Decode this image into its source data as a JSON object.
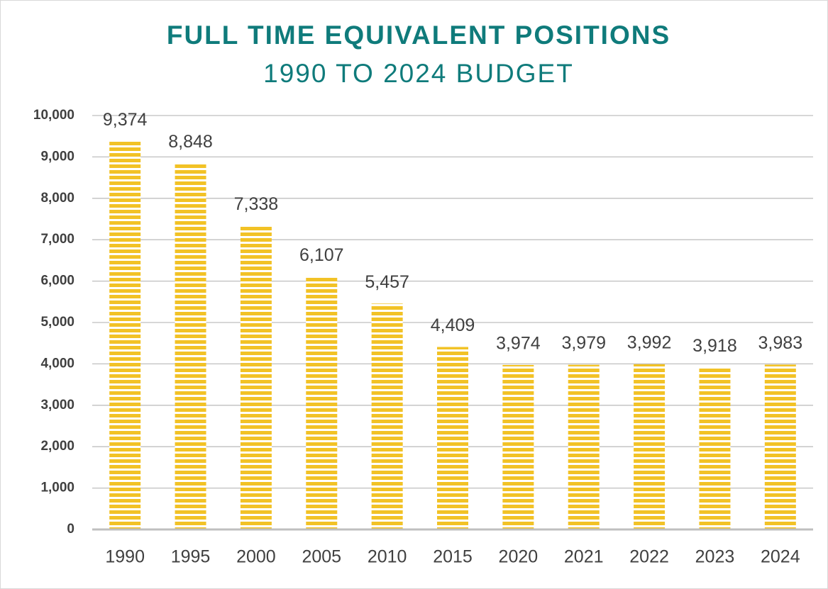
{
  "chart_data": {
    "type": "bar",
    "title": "FULL TIME EQUIVALENT POSITIONS",
    "subtitle": "1990 TO 2024 BUDGET",
    "categories": [
      "1990",
      "1995",
      "2000",
      "2005",
      "2010",
      "2015",
      "2020",
      "2021",
      "2022",
      "2023",
      "2024"
    ],
    "values": [
      9374,
      8848,
      7338,
      6107,
      5457,
      4409,
      3974,
      3979,
      3992,
      3918,
      3983
    ],
    "value_labels": [
      "9,374",
      "8,848",
      "7,338",
      "6,107",
      "5,457",
      "4,409",
      "3,974",
      "3,979",
      "3,992",
      "3,918",
      "3,983"
    ],
    "color": "#f2c226",
    "ylim": [
      0,
      10000
    ],
    "yticks": [
      0,
      {
        "value": 1000,
        "label": "1,000"
      },
      {
        "value": 2000,
        "label": "2,000"
      },
      {
        "value": 3000,
        "label": "3,000"
      },
      {
        "value": 4000,
        "label": "4,000"
      },
      {
        "value": 5000,
        "label": "5,000"
      },
      {
        "value": 6000,
        "label": "6,000"
      },
      {
        "value": 7000,
        "label": "7,000"
      },
      {
        "value": 8000,
        "label": "8,000"
      },
      {
        "value": 9000,
        "label": "9,000"
      },
      {
        "value": 10000,
        "label": "10,000"
      }
    ],
    "grid": true
  }
}
